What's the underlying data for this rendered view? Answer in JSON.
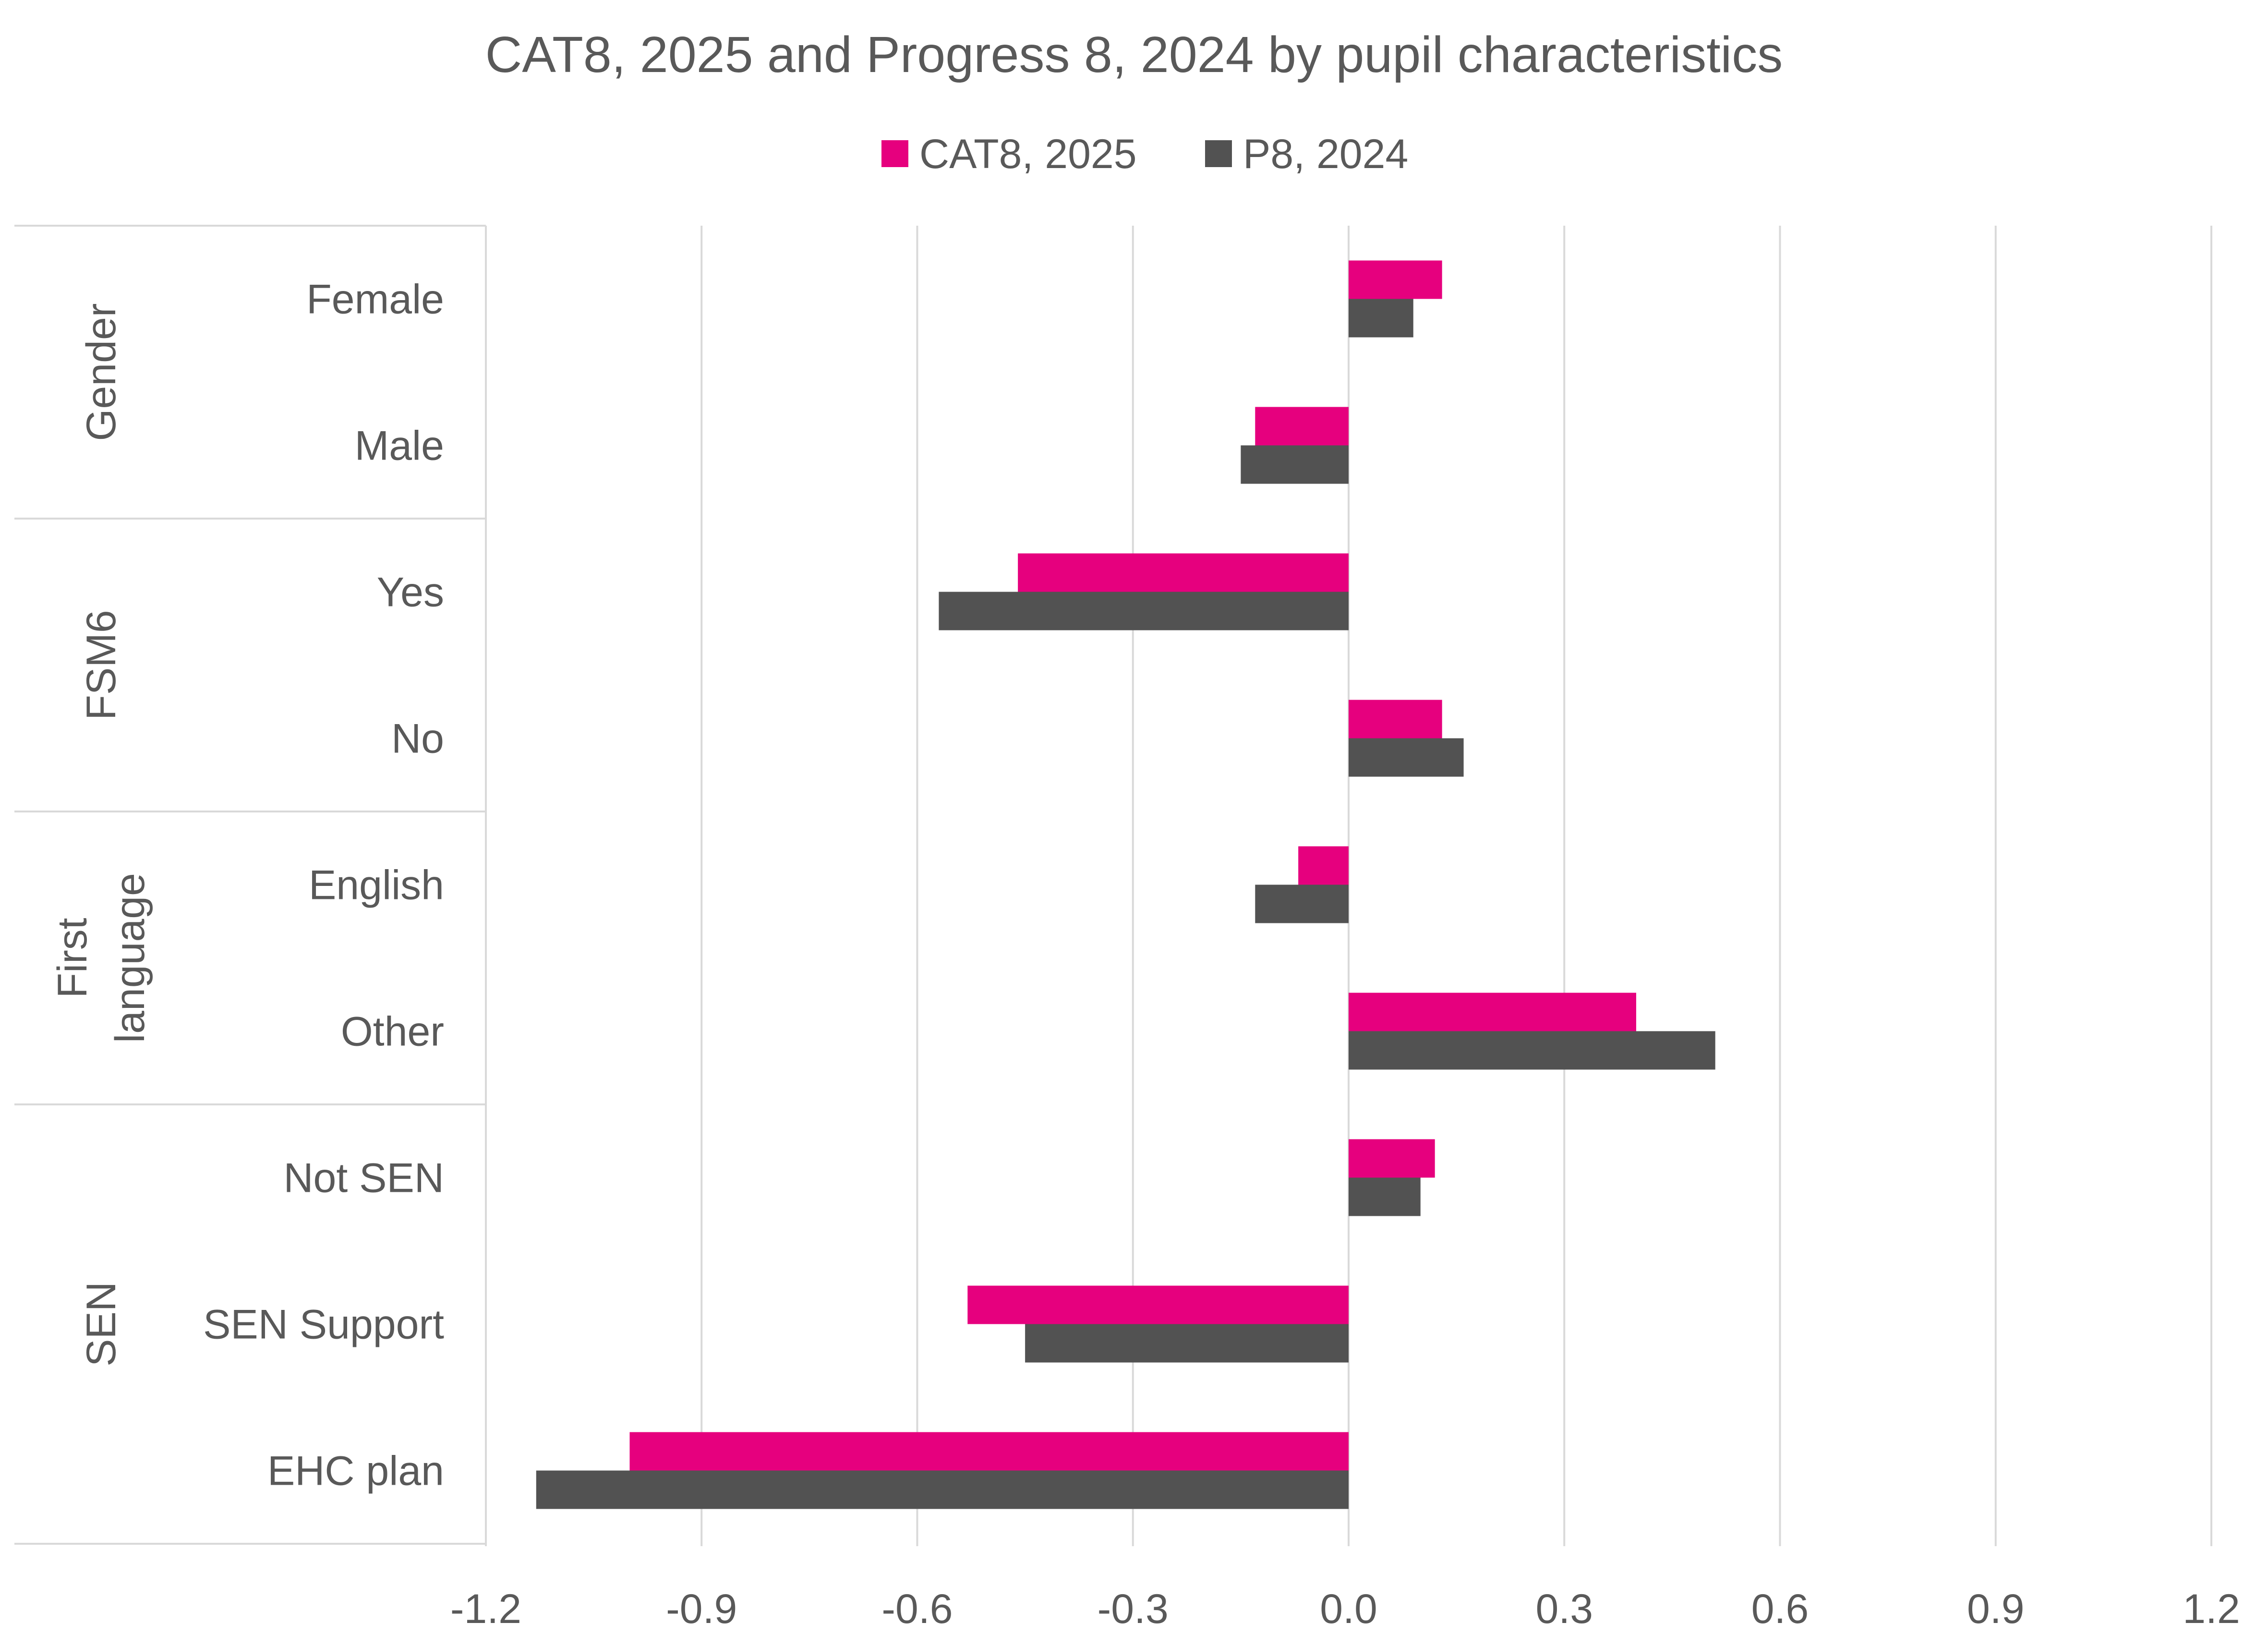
{
  "chart_data": {
    "type": "bar",
    "orientation": "horizontal",
    "title": "CAT8, 2025 and Progress 8, 2024 by pupil characteristics",
    "legend_position": "top",
    "xlim": [
      -1.2,
      1.2
    ],
    "xticks": [
      "-1.2",
      "-0.9",
      "-0.6",
      "-0.3",
      "0.0",
      "0.3",
      "0.6",
      "0.9",
      "1.2"
    ],
    "xtick_values": [
      -1.2,
      -0.9,
      -0.6,
      -0.3,
      0.0,
      0.3,
      0.6,
      0.9,
      1.2
    ],
    "grid": true,
    "groups": [
      {
        "label": "Gender",
        "categories": [
          "Female",
          "Male"
        ]
      },
      {
        "label": "FSM6",
        "categories": [
          "Yes",
          "No"
        ]
      },
      {
        "label": "First language",
        "label_lines": [
          "First",
          "language"
        ],
        "categories": [
          "English",
          "Other"
        ]
      },
      {
        "label": "SEN",
        "categories": [
          "Not SEN",
          "SEN Support",
          "EHC plan"
        ]
      }
    ],
    "categories": [
      "Female",
      "Male",
      "Yes",
      "No",
      "English",
      "Other",
      "Not SEN",
      "SEN Support",
      "EHC plan"
    ],
    "series": [
      {
        "name": "CAT8, 2025",
        "color": "#E6007E",
        "values": [
          0.13,
          -0.13,
          -0.46,
          0.13,
          -0.07,
          0.4,
          0.12,
          -0.53,
          -1.0
        ]
      },
      {
        "name": "P8, 2024",
        "color": "#525252",
        "values": [
          0.09,
          -0.15,
          -0.57,
          0.16,
          -0.13,
          0.51,
          0.1,
          -0.45,
          -1.13
        ]
      }
    ]
  }
}
